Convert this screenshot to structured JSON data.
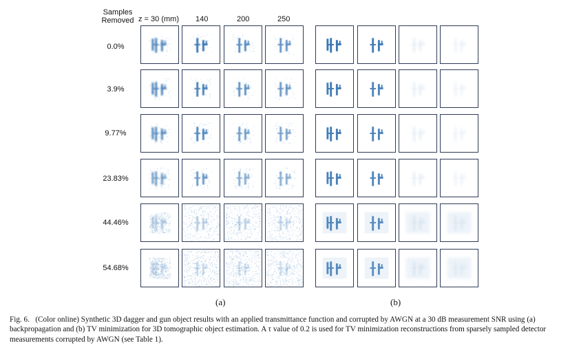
{
  "header": {
    "samples_removed_line1": "Samples",
    "samples_removed_line2": "Removed",
    "z_labels": [
      "z = 30 (mm)",
      "140",
      "200",
      "250"
    ]
  },
  "rows": [
    "0.0%",
    "3.9%",
    "9.77%",
    "23.83%",
    "44.46%",
    "54.68%"
  ],
  "panel_labels": {
    "a": "(a)",
    "b": "(b)"
  },
  "caption": {
    "label": "Fig. 6.",
    "text": "(Color online) Synthetic 3D dagger and gun object results with an applied transmittance function and corrupted by AWGN at a 30 dB measurement SNR using (a) backpropagation and (b) TV minimization for 3D tomographic object estimation. A τ value of 0.2 is used for TV minimization reconstructions from sparsely sampled detector measurements corrupted by AWGN (see Table 1)."
  },
  "colors": {
    "object": "#2f6fb0",
    "noise": "#6f9fcc",
    "frame": "#2d3b55"
  }
}
